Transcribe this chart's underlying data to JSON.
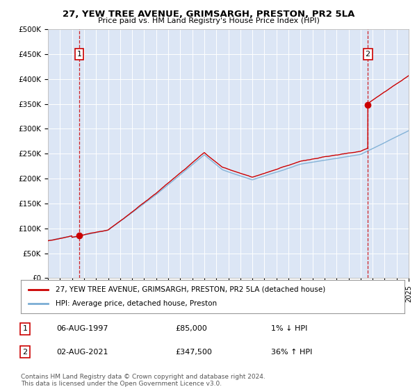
{
  "title": "27, YEW TREE AVENUE, GRIMSARGH, PRESTON, PR2 5LA",
  "subtitle": "Price paid vs. HM Land Registry's House Price Index (HPI)",
  "ylim": [
    0,
    500000
  ],
  "yticks": [
    0,
    50000,
    100000,
    150000,
    200000,
    250000,
    300000,
    350000,
    400000,
    450000,
    500000
  ],
  "ytick_labels": [
    "£0",
    "£50K",
    "£100K",
    "£150K",
    "£200K",
    "£250K",
    "£300K",
    "£350K",
    "£400K",
    "£450K",
    "£500K"
  ],
  "plot_bg_color": "#dce6f5",
  "red_line_color": "#cc0000",
  "blue_line_color": "#7aadd4",
  "marker_color": "#cc0000",
  "dashed_line_color": "#cc0000",
  "purchase1_year": 1997.6,
  "purchase1_price": 85000,
  "purchase2_year": 2021.6,
  "purchase2_price": 347500,
  "legend_label1": "27, YEW TREE AVENUE, GRIMSARGH, PRESTON, PR2 5LA (detached house)",
  "legend_label2": "HPI: Average price, detached house, Preston",
  "note1_num": "1",
  "note1_date": "06-AUG-1997",
  "note1_price": "£85,000",
  "note1_hpi": "1% ↓ HPI",
  "note2_num": "2",
  "note2_date": "02-AUG-2021",
  "note2_price": "£347,500",
  "note2_hpi": "36% ↑ HPI",
  "footer": "Contains HM Land Registry data © Crown copyright and database right 2024.\nThis data is licensed under the Open Government Licence v3.0.",
  "xmin": 1995,
  "xmax": 2025
}
